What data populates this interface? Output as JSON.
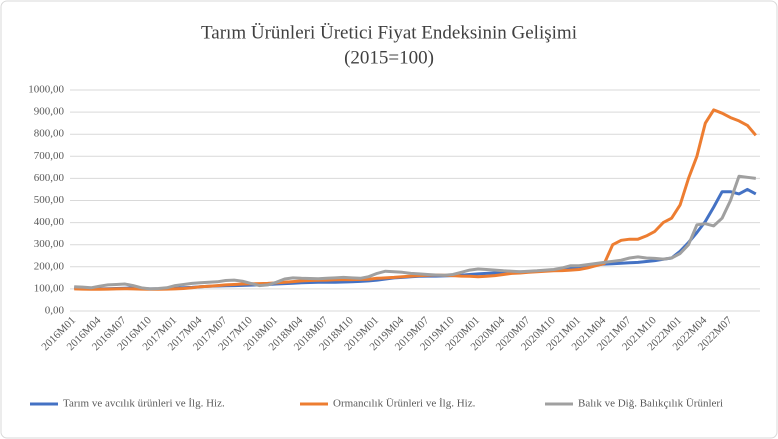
{
  "chart_data": {
    "type": "line",
    "title": "Tarım Ürünleri Üretici Fiyat Endeksinin Gelişimi",
    "subtitle": "(2015=100)",
    "categories": [
      "2016M01",
      null,
      null,
      "2016M04",
      null,
      null,
      "2016M07",
      null,
      null,
      "2016M10",
      null,
      null,
      "2017M01",
      null,
      null,
      "2017M04",
      null,
      null,
      "2017M07",
      null,
      null,
      "2017M10",
      null,
      null,
      "2018M01",
      null,
      null,
      "2018M04",
      null,
      null,
      "2018M07",
      null,
      null,
      "2018M10",
      null,
      null,
      "2019M01",
      null,
      null,
      "2019M04",
      null,
      null,
      "2019M07",
      null,
      null,
      "2019M10",
      null,
      null,
      "2020M01",
      null,
      null,
      "2020M04",
      null,
      null,
      "2020M07",
      null,
      null,
      "2020M10",
      null,
      null,
      "2021M01",
      null,
      null,
      "2021M04",
      null,
      null,
      "2021M07",
      null,
      null,
      "2021M10",
      null,
      null,
      "2022M01",
      null,
      null,
      "2022M04",
      null,
      null,
      "2022M07",
      null,
      null,
      null
    ],
    "series": [
      {
        "name": "Tarım ve avcılık ürünleri ve İlg. Hiz.",
        "color": "#4472c4",
        "values": [
          105,
          102,
          100,
          100,
          101,
          102,
          103,
          104,
          102,
          100,
          100,
          101,
          103,
          105,
          107,
          110,
          112,
          113,
          114,
          115,
          116,
          117,
          118,
          120,
          122,
          124,
          126,
          128,
          129,
          130,
          130,
          130,
          131,
          132,
          134,
          136,
          140,
          145,
          150,
          152,
          155,
          157,
          158,
          158,
          159,
          160,
          162,
          165,
          168,
          170,
          172,
          174,
          176,
          177,
          178,
          180,
          182,
          185,
          190,
          195,
          200,
          205,
          210,
          212,
          214,
          216,
          218,
          220,
          224,
          228,
          234,
          240,
          270,
          310,
          355,
          405,
          470,
          540,
          540,
          530,
          550,
          530
        ]
      },
      {
        "name": "Ormancılık Ürünleri ve İlg. Hiz.",
        "color": "#ed7d31",
        "values": [
          100,
          99,
          98,
          98,
          99,
          100,
          101,
          100,
          99,
          98,
          98,
          99,
          100,
          102,
          105,
          110,
          112,
          115,
          118,
          120,
          122,
          123,
          124,
          125,
          127,
          130,
          133,
          136,
          138,
          139,
          140,
          141,
          142,
          142,
          143,
          144,
          148,
          150,
          152,
          155,
          158,
          160,
          162,
          163,
          162,
          160,
          158,
          157,
          155,
          157,
          160,
          165,
          170,
          172,
          175,
          178,
          180,
          182,
          183,
          185,
          188,
          195,
          205,
          215,
          300,
          320,
          325,
          325,
          340,
          360,
          400,
          420,
          480,
          600,
          700,
          850,
          910,
          895,
          875,
          860,
          840,
          795
        ]
      },
      {
        "name": "Balık ve Diğ. Balıkçılık Ürünleri",
        "color": "#a0a0a0",
        "values": [
          110,
          108,
          105,
          112,
          118,
          120,
          122,
          115,
          105,
          100,
          102,
          105,
          115,
          120,
          125,
          128,
          130,
          132,
          138,
          140,
          135,
          125,
          115,
          118,
          130,
          145,
          150,
          148,
          147,
          146,
          148,
          150,
          152,
          150,
          148,
          155,
          170,
          180,
          178,
          175,
          170,
          168,
          165,
          163,
          162,
          165,
          175,
          185,
          190,
          188,
          185,
          182,
          180,
          178,
          180,
          182,
          185,
          188,
          195,
          205,
          205,
          210,
          215,
          220,
          225,
          230,
          240,
          245,
          240,
          238,
          235,
          240,
          260,
          300,
          390,
          395,
          385,
          420,
          500,
          610,
          605,
          600
        ]
      }
    ],
    "ylim": [
      0,
      1000
    ],
    "yticks": [
      {
        "value": 0,
        "label": "0,00"
      },
      {
        "value": 100,
        "label": "100,00"
      },
      {
        "value": 200,
        "label": "200,00"
      },
      {
        "value": 300,
        "label": "300,00"
      },
      {
        "value": 400,
        "label": "400,00"
      },
      {
        "value": 500,
        "label": "500,00"
      },
      {
        "value": 600,
        "label": "600,00"
      },
      {
        "value": 700,
        "label": "700,00"
      },
      {
        "value": 800,
        "label": "800,00"
      },
      {
        "value": 900,
        "label": "900,00"
      },
      {
        "value": 1000,
        "label": "1000,00"
      }
    ],
    "grid": true,
    "legend": "bottom"
  }
}
